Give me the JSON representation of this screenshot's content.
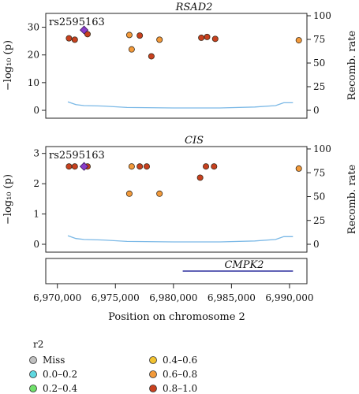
{
  "x_axis": {
    "label": "Position on chromosome 2",
    "ticks": [
      6970000,
      6975000,
      6980000,
      6985000,
      6990000
    ],
    "tick_labels": [
      "6,970,000",
      "6,975,000",
      "6,980,000",
      "6,985,000",
      "6,990,000"
    ]
  },
  "gene_track": {
    "gene": "CMPK2",
    "start": 6980800,
    "end": 6990300,
    "color": "#2b2f9e"
  },
  "recomb_color": "#7ab8e6",
  "lead_color": "#8a3ec9",
  "r2_colors": {
    "Miss": "#c0c0c0",
    "0.0-0.2": "#5fd8e0",
    "0.2-0.4": "#6fe06a",
    "0.4-0.6": "#f2c230",
    "0.6-0.8": "#f39a3a",
    "0.8-1.0": "#c8401e"
  },
  "legend": {
    "title": "r2",
    "items": [
      {
        "label": "Miss",
        "key": "Miss"
      },
      {
        "label": "0.0–0.2",
        "key": "0.0-0.2"
      },
      {
        "label": "0.2–0.4",
        "key": "0.2-0.4"
      },
      {
        "label": "0.4–0.6",
        "key": "0.4-0.6"
      },
      {
        "label": "0.6–0.8",
        "key": "0.6-0.8"
      },
      {
        "label": "0.8–1.0",
        "key": "0.8-1.0"
      }
    ]
  },
  "chart_data": [
    {
      "type": "scatter",
      "title": "RSAD2",
      "ylabel": "−log₁₀ (p)",
      "y2label": "Recomb. rate",
      "ylim": [
        0,
        35
      ],
      "yticks": [
        0,
        10,
        20,
        30
      ],
      "y2lim": [
        0,
        100
      ],
      "y2ticks": [
        0,
        25,
        50,
        75,
        100
      ],
      "lead_snp": {
        "label": "rs2595163",
        "x": 6972300,
        "y": 29
      },
      "points": [
        {
          "x": 6971000,
          "y": 26,
          "r2": "0.8-1.0"
        },
        {
          "x": 6971500,
          "y": 25.5,
          "r2": "0.8-1.0"
        },
        {
          "x": 6972600,
          "y": 27.5,
          "r2": "0.8-1.0"
        },
        {
          "x": 6976200,
          "y": 27.2,
          "r2": "0.6-0.8"
        },
        {
          "x": 6976400,
          "y": 22,
          "r2": "0.6-0.8"
        },
        {
          "x": 6977100,
          "y": 27,
          "r2": "0.8-1.0"
        },
        {
          "x": 6978100,
          "y": 19.5,
          "r2": "0.8-1.0"
        },
        {
          "x": 6978800,
          "y": 25.5,
          "r2": "0.6-0.8"
        },
        {
          "x": 6982400,
          "y": 26.2,
          "r2": "0.8-1.0"
        },
        {
          "x": 6982900,
          "y": 26.5,
          "r2": "0.8-1.0"
        },
        {
          "x": 6983600,
          "y": 25.8,
          "r2": "0.8-1.0"
        },
        {
          "x": 6990800,
          "y": 25.3,
          "r2": "0.6-0.8"
        }
      ],
      "recomb_rate": {
        "x": [
          6970900,
          6971600,
          6972300,
          6974000,
          6976000,
          6980000,
          6984000,
          6987000,
          6988800,
          6989500,
          6990300
        ],
        "y": [
          9,
          6,
          5,
          4.5,
          3,
          2.5,
          2.5,
          3.5,
          5,
          8,
          8
        ]
      }
    },
    {
      "type": "scatter",
      "title": "CIS",
      "ylabel": "−log₁₀ (p)",
      "y2label": "Recomb. rate",
      "ylim": [
        0,
        3.2
      ],
      "yticks": [
        0,
        1,
        2,
        3
      ],
      "y2lim": [
        0,
        100
      ],
      "y2ticks": [
        0,
        25,
        50,
        75,
        100
      ],
      "lead_snp": {
        "label": "rs2595163",
        "x": 6972300,
        "y": 2.57
      },
      "points": [
        {
          "x": 6971000,
          "y": 2.57,
          "r2": "0.8-1.0"
        },
        {
          "x": 6971500,
          "y": 2.57,
          "r2": "0.8-1.0"
        },
        {
          "x": 6972600,
          "y": 2.57,
          "r2": "0.8-1.0"
        },
        {
          "x": 6976200,
          "y": 1.67,
          "r2": "0.6-0.8"
        },
        {
          "x": 6976400,
          "y": 2.57,
          "r2": "0.6-0.8"
        },
        {
          "x": 6977100,
          "y": 2.57,
          "r2": "0.8-1.0"
        },
        {
          "x": 6977700,
          "y": 2.57,
          "r2": "0.8-1.0"
        },
        {
          "x": 6978800,
          "y": 1.67,
          "r2": "0.6-0.8"
        },
        {
          "x": 6982300,
          "y": 2.2,
          "r2": "0.8-1.0"
        },
        {
          "x": 6982800,
          "y": 2.57,
          "r2": "0.8-1.0"
        },
        {
          "x": 6983500,
          "y": 2.57,
          "r2": "0.8-1.0"
        },
        {
          "x": 6990800,
          "y": 2.5,
          "r2": "0.6-0.8"
        }
      ],
      "recomb_rate": {
        "x": [
          6970900,
          6971600,
          6972300,
          6974000,
          6976000,
          6980000,
          6984000,
          6987000,
          6988800,
          6989500,
          6990300
        ],
        "y": [
          9,
          6,
          5,
          4.5,
          3,
          2.5,
          2.5,
          3.5,
          5,
          8,
          8
        ]
      }
    }
  ]
}
